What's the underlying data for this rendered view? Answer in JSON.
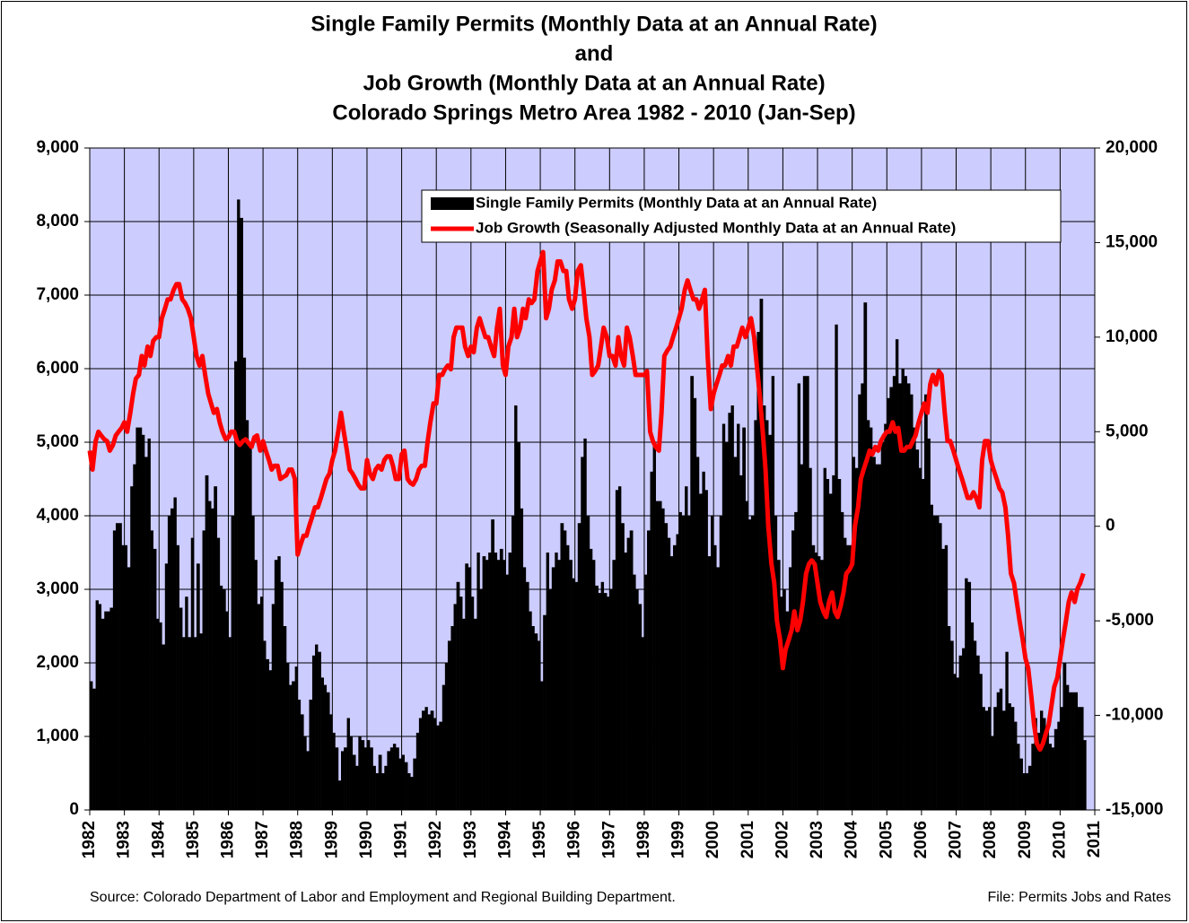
{
  "chart_data": {
    "type": "combo",
    "title": [
      "Single Family Permits (Monthly Data at an Annual Rate)",
      "and",
      "Job Growth (Monthly Data at an Annual Rate)",
      "Colorado Springs Metro Area 1982 - 2010 (Jan-Sep)"
    ],
    "annotations": [
      "Source: Colorado Department of Labor and Employment and Regional Building Department.",
      "File: Permits Jobs and Rates"
    ],
    "grid": true,
    "legend": "top-right",
    "background": "#ccccff",
    "xlim": [
      1982,
      2011
    ],
    "xticks": [
      1982,
      1983,
      1984,
      1985,
      1986,
      1987,
      1988,
      1989,
      1990,
      1991,
      1992,
      1993,
      1994,
      1995,
      1996,
      1997,
      1998,
      1999,
      2000,
      2001,
      2002,
      2003,
      2004,
      2005,
      2006,
      2007,
      2008,
      2009,
      2010,
      2011
    ],
    "ylim": [
      0,
      9000
    ],
    "yticks": [
      0,
      {
        "value": 1000,
        "label": "1,000"
      },
      {
        "value": 2000,
        "label": "2,000"
      },
      {
        "value": 3000,
        "label": "3,000"
      },
      {
        "value": 4000,
        "label": "4,000"
      },
      {
        "value": 5000,
        "label": "5,000"
      },
      {
        "value": 6000,
        "label": "6,000"
      },
      {
        "value": 7000,
        "label": "7,000"
      },
      {
        "value": 8000,
        "label": "8,000"
      },
      {
        "value": 9000,
        "label": "9,000"
      }
    ],
    "y2lim": [
      -15000,
      20000
    ],
    "y2ticks": [
      {
        "value": -15000,
        "label": "-15,000"
      },
      {
        "value": -10000,
        "label": "-10,000"
      },
      {
        "value": -5000,
        "label": "-5,000"
      },
      0,
      {
        "value": 5000,
        "label": "5,000"
      },
      {
        "value": 10000,
        "label": "10,000"
      },
      {
        "value": 15000,
        "label": "15,000"
      },
      {
        "value": 20000,
        "label": "20,000"
      }
    ],
    "x": [
      1982,
      1982.08,
      1982.17,
      1982.25,
      1982.33,
      1982.42,
      1982.5,
      1982.58,
      1982.67,
      1982.75,
      1982.83,
      1982.92,
      1983,
      1983.08,
      1983.17,
      1983.25,
      1983.33,
      1983.42,
      1983.5,
      1983.58,
      1983.67,
      1983.75,
      1983.83,
      1983.92,
      1984,
      1984.08,
      1984.17,
      1984.25,
      1984.33,
      1984.42,
      1984.5,
      1984.58,
      1984.67,
      1984.75,
      1984.83,
      1984.92,
      1985,
      1985.08,
      1985.17,
      1985.25,
      1985.33,
      1985.42,
      1985.5,
      1985.58,
      1985.67,
      1985.75,
      1985.83,
      1985.92,
      1986,
      1986.08,
      1986.17,
      1986.25,
      1986.33,
      1986.42,
      1986.5,
      1986.58,
      1986.67,
      1986.75,
      1986.83,
      1986.92,
      1987,
      1987.08,
      1987.17,
      1987.25,
      1987.33,
      1987.42,
      1987.5,
      1987.58,
      1987.67,
      1987.75,
      1987.83,
      1987.92,
      1988,
      1988.08,
      1988.17,
      1988.25,
      1988.33,
      1988.42,
      1988.5,
      1988.58,
      1988.67,
      1988.75,
      1988.83,
      1988.92,
      1989,
      1989.08,
      1989.17,
      1989.25,
      1989.33,
      1989.42,
      1989.5,
      1989.58,
      1989.67,
      1989.75,
      1989.83,
      1989.92,
      1990,
      1990.08,
      1990.17,
      1990.25,
      1990.33,
      1990.42,
      1990.5,
      1990.58,
      1990.67,
      1990.75,
      1990.83,
      1990.92,
      1991,
      1991.08,
      1991.17,
      1991.25,
      1991.33,
      1991.42,
      1991.5,
      1991.58,
      1991.67,
      1991.75,
      1991.83,
      1991.92,
      1992,
      1992.08,
      1992.17,
      1992.25,
      1992.33,
      1992.42,
      1992.5,
      1992.58,
      1992.67,
      1992.75,
      1992.83,
      1992.92,
      1993,
      1993.08,
      1993.17,
      1993.25,
      1993.33,
      1993.42,
      1993.5,
      1993.58,
      1993.67,
      1993.75,
      1993.83,
      1993.92,
      1994,
      1994.08,
      1994.17,
      1994.25,
      1994.33,
      1994.42,
      1994.5,
      1994.58,
      1994.67,
      1994.75,
      1994.83,
      1994.92,
      1995,
      1995.08,
      1995.17,
      1995.25,
      1995.33,
      1995.42,
      1995.5,
      1995.58,
      1995.67,
      1995.75,
      1995.83,
      1995.92,
      1996,
      1996.08,
      1996.17,
      1996.25,
      1996.33,
      1996.42,
      1996.5,
      1996.58,
      1996.67,
      1996.75,
      1996.83,
      1996.92,
      1997,
      1997.08,
      1997.17,
      1997.25,
      1997.33,
      1997.42,
      1997.5,
      1997.58,
      1997.67,
      1997.75,
      1997.83,
      1997.92,
      1998,
      1998.08,
      1998.17,
      1998.25,
      1998.33,
      1998.42,
      1998.5,
      1998.58,
      1998.67,
      1998.75,
      1998.83,
      1998.92,
      1999,
      1999.08,
      1999.17,
      1999.25,
      1999.33,
      1999.42,
      1999.5,
      1999.58,
      1999.67,
      1999.75,
      1999.83,
      1999.92,
      2000,
      2000.08,
      2000.17,
      2000.25,
      2000.33,
      2000.42,
      2000.5,
      2000.58,
      2000.67,
      2000.75,
      2000.83,
      2000.92,
      2001,
      2001.08,
      2001.17,
      2001.25,
      2001.33,
      2001.42,
      2001.5,
      2001.58,
      2001.67,
      2001.75,
      2001.83,
      2001.92,
      2002,
      2002.08,
      2002.17,
      2002.25,
      2002.33,
      2002.42,
      2002.5,
      2002.58,
      2002.67,
      2002.75,
      2002.83,
      2002.92,
      2003,
      2003.08,
      2003.17,
      2003.25,
      2003.33,
      2003.42,
      2003.5,
      2003.58,
      2003.67,
      2003.75,
      2003.83,
      2003.92,
      2004,
      2004.08,
      2004.17,
      2004.25,
      2004.33,
      2004.42,
      2004.5,
      2004.58,
      2004.67,
      2004.75,
      2004.83,
      2004.92,
      2005,
      2005.08,
      2005.17,
      2005.25,
      2005.33,
      2005.42,
      2005.5,
      2005.58,
      2005.67,
      2005.75,
      2005.83,
      2005.92,
      2006,
      2006.08,
      2006.17,
      2006.25,
      2006.33,
      2006.42,
      2006.5,
      2006.58,
      2006.67,
      2006.75,
      2006.83,
      2006.92,
      2007,
      2007.08,
      2007.17,
      2007.25,
      2007.33,
      2007.42,
      2007.5,
      2007.58,
      2007.67,
      2007.75,
      2007.83,
      2007.92,
      2008,
      2008.08,
      2008.17,
      2008.25,
      2008.33,
      2008.42,
      2008.5,
      2008.58,
      2008.67,
      2008.75,
      2008.83,
      2008.92,
      2009,
      2009.08,
      2009.17,
      2009.25,
      2009.33,
      2009.42,
      2009.5,
      2009.58,
      2009.67,
      2009.75,
      2009.83,
      2009.92,
      2010,
      2010.08,
      2010.17,
      2010.25,
      2010.33,
      2010.42,
      2010.5,
      2010.58,
      2010.67
    ],
    "series": [
      {
        "name": "Single Family Permits (Monthly Data at an Annual Rate)",
        "type": "bar",
        "color": "#000000",
        "values": [
          1750,
          1650,
          2850,
          2800,
          2600,
          2700,
          2700,
          2750,
          3800,
          3900,
          3900,
          3600,
          3600,
          3300,
          4400,
          4700,
          5200,
          5200,
          5100,
          4800,
          5050,
          3800,
          3550,
          2600,
          2550,
          2250,
          3350,
          4000,
          4100,
          4250,
          3600,
          2750,
          2350,
          2900,
          2350,
          3700,
          2350,
          3350,
          2400,
          3800,
          4550,
          4200,
          4100,
          4400,
          3700,
          3050,
          3000,
          2700,
          2350,
          4000,
          6100,
          8300,
          8050,
          6150,
          5300,
          5000,
          4000,
          3400,
          2800,
          2900,
          2300,
          2050,
          1900,
          2800,
          3400,
          3450,
          3100,
          2500,
          2000,
          1700,
          1750,
          1950,
          1500,
          1300,
          1000,
          800,
          1500,
          2100,
          2250,
          2150,
          1800,
          1700,
          1600,
          1300,
          1050,
          850,
          400,
          800,
          850,
          1250,
          1000,
          750,
          600,
          1000,
          950,
          850,
          950,
          850,
          600,
          500,
          750,
          500,
          600,
          800,
          850,
          900,
          850,
          700,
          750,
          650,
          500,
          450,
          700,
          1050,
          1250,
          1350,
          1400,
          1300,
          1350,
          1250,
          1150,
          1200,
          1700,
          2000,
          2300,
          2500,
          2800,
          3100,
          2900,
          2600,
          3350,
          3300,
          2900,
          2600,
          3500,
          3000,
          3450,
          3400,
          3500,
          3950,
          3500,
          3400,
          3550,
          3400,
          3200,
          3500,
          4000,
          5500,
          5000,
          4100,
          3300,
          3100,
          2700,
          2500,
          2400,
          2300,
          1750,
          2650,
          3500,
          3000,
          3300,
          3500,
          3400,
          3900,
          3800,
          3600,
          3400,
          3150,
          3100,
          3900,
          4800,
          5050,
          4000,
          3550,
          3400,
          3050,
          2950,
          3100,
          2950,
          2900,
          3000,
          3400,
          4350,
          4400,
          3900,
          3500,
          3700,
          3800,
          3200,
          3000,
          2800,
          2350,
          3200,
          3800,
          4600,
          5000,
          4200,
          4200,
          4100,
          3900,
          3700,
          3450,
          3600,
          3750,
          4050,
          4000,
          4400,
          4000,
          5900,
          5600,
          4800,
          4300,
          4600,
          4350,
          3450,
          4000,
          3600,
          3300,
          4000,
          5250,
          5000,
          5400,
          5500,
          4800,
          5250,
          4550,
          5200,
          4200,
          3950,
          4000,
          5300,
          6500,
          6950,
          5500,
          5300,
          5100,
          5900,
          4000,
          3400,
          2900,
          3000,
          2700,
          3300,
          3800,
          4050,
          5800,
          4700,
          5900,
          5900,
          4650,
          3600,
          3500,
          3450,
          3400,
          4650,
          4500,
          4300,
          4550,
          6600,
          4500,
          4050,
          3700,
          3600,
          3600,
          4800,
          4650,
          5650,
          5800,
          6900,
          5300,
          5200,
          4800,
          4700,
          4700,
          5000,
          5250,
          5600,
          5750,
          5900,
          6400,
          5800,
          6000,
          5900,
          5800,
          5650,
          5200,
          4900,
          4650,
          4500,
          5650,
          5050,
          4150,
          4000,
          4000,
          3900,
          3550,
          3600,
          2500,
          2300,
          1850,
          1800,
          2100,
          2200,
          3150,
          3100,
          2550,
          2300,
          2100,
          1850,
          1400,
          1350,
          1400,
          1000,
          1400,
          1600,
          1650,
          1350,
          2150,
          1450,
          1400,
          1200,
          900,
          700,
          500,
          500,
          600,
          900,
          1250,
          1050,
          1350,
          1250,
          1100,
          900,
          850,
          1100,
          1200,
          1400,
          2000,
          1700,
          1600,
          1600,
          1600,
          1400,
          1400,
          950
        ]
      },
      {
        "name": "Job Growth (Seasonally Adjusted Monthly Data at an Annual Rate)",
        "type": "line",
        "axis": "y2",
        "color": "#ff0000",
        "values": [
          4000,
          3000,
          4500,
          5000,
          4800,
          4600,
          4500,
          4000,
          4300,
          4800,
          5000,
          5200,
          5500,
          5000,
          6000,
          7000,
          7800,
          8000,
          9000,
          8500,
          9500,
          9000,
          9800,
          10000,
          10000,
          11000,
          11500,
          12000,
          12000,
          12500,
          12800,
          12800,
          12000,
          11800,
          11500,
          11000,
          10000,
          9000,
          8500,
          9000,
          8000,
          7000,
          6500,
          6000,
          6200,
          5500,
          5000,
          4600,
          4700,
          5000,
          5000,
          4500,
          4300,
          4500,
          4600,
          4400,
          4200,
          4700,
          4800,
          4000,
          4500,
          4000,
          3500,
          3000,
          3200,
          3200,
          2500,
          2600,
          2700,
          3000,
          3000,
          2500,
          -1500,
          -1000,
          -500,
          -500,
          0,
          500,
          1000,
          1000,
          1500,
          2000,
          2500,
          2800,
          3500,
          4000,
          5000,
          6000,
          5000,
          4000,
          3000,
          2800,
          2500,
          2200,
          2000,
          2000,
          3500,
          2800,
          2500,
          3000,
          3200,
          3000,
          3500,
          3700,
          3700,
          3200,
          2500,
          2500,
          3800,
          4000,
          2500,
          2300,
          2200,
          2500,
          3000,
          3200,
          3200,
          4500,
          5500,
          6500,
          6500,
          8000,
          8000,
          8300,
          8500,
          8300,
          10000,
          10500,
          10500,
          10500,
          9500,
          9000,
          9500,
          9200,
          10500,
          11000,
          10500,
          10000,
          10000,
          9500,
          9000,
          10500,
          11500,
          8500,
          8000,
          9500,
          10000,
          11500,
          10000,
          10500,
          11500,
          11000,
          12000,
          11800,
          12000,
          13500,
          14000,
          14500,
          11000,
          11500,
          12500,
          13000,
          14000,
          14000,
          13500,
          13500,
          12000,
          11500,
          12000,
          13500,
          13800,
          12500,
          11000,
          10000,
          8000,
          8200,
          8500,
          9500,
          10500,
          10000,
          9000,
          9000,
          8500,
          10000,
          9000,
          8500,
          10500,
          10000,
          9000,
          8000,
          8000,
          8000,
          8000,
          8200,
          5000,
          4500,
          4200,
          4000,
          6000,
          9000,
          9300,
          9500,
          10000,
          10500,
          11000,
          11500,
          12500,
          13000,
          12500,
          12000,
          12000,
          11500,
          12000,
          12500,
          9000,
          6200,
          7000,
          7500,
          8000,
          8500,
          8500,
          9000,
          8500,
          9500,
          9500,
          10000,
          10500,
          10000,
          10500,
          11000,
          10000,
          8500,
          7000,
          5000,
          3000,
          0,
          -2000,
          -3000,
          -5000,
          -6000,
          -7500,
          -6500,
          -6000,
          -5500,
          -4500,
          -5500,
          -5000,
          -4000,
          -2500,
          -2000,
          -1800,
          -2000,
          -3000,
          -4000,
          -4500,
          -4800,
          -4000,
          -3500,
          -4500,
          -4800,
          -4200,
          -3500,
          -2500,
          -2300,
          -2000,
          0,
          1000,
          2500,
          3000,
          3500,
          4000,
          3800,
          4200,
          4000,
          4500,
          4800,
          5000,
          5000,
          5500,
          5000,
          5200,
          4000,
          4000,
          4200,
          4200,
          4500,
          4800,
          5500,
          6000,
          6500,
          6000,
          7500,
          8000,
          7500,
          8200,
          8000,
          6000,
          4500,
          4500,
          4000,
          3500,
          3000,
          2500,
          2000,
          1500,
          1500,
          1800,
          1500,
          1000,
          3500,
          4500,
          4500,
          3500,
          3000,
          2500,
          2000,
          1800,
          1000,
          -500,
          -2500,
          -3000,
          -4000,
          -5000,
          -6000,
          -7000,
          -7500,
          -9000,
          -10500,
          -11500,
          -11800,
          -11500,
          -11000,
          -10500,
          -9500,
          -8500,
          -8000,
          -7000,
          -6000,
          -5000,
          -4000,
          -3500,
          -4000,
          -3300,
          -3000,
          -2500
        ]
      }
    ]
  }
}
